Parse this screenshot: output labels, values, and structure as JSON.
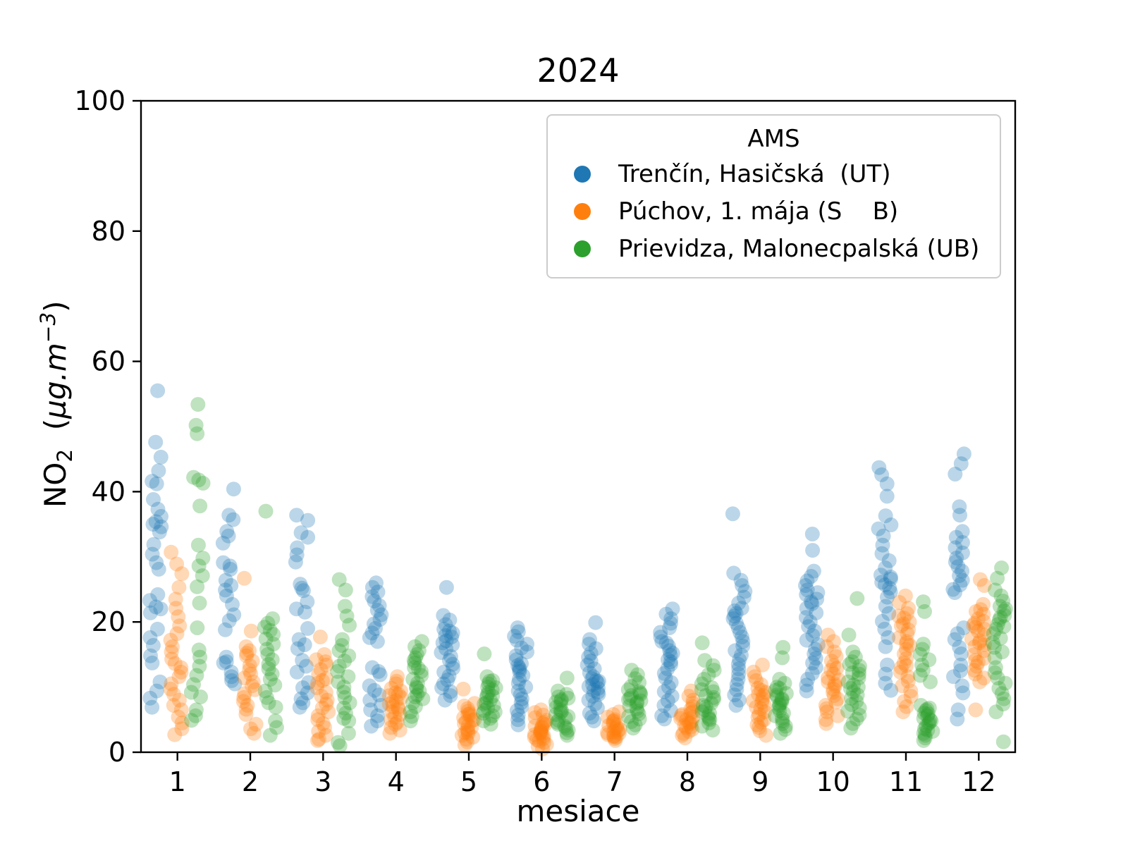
{
  "figure": {
    "title": "2024"
  },
  "chart_data": {
    "type": "scatter",
    "title": "2024",
    "xlabel": "mesiace",
    "ylabel": {
      "text": "NO2 (µg.m−3)",
      "base": "NO",
      "sub": "2",
      "open": "  (",
      "unit": "µg.m",
      "exp": "−3",
      "close": ")"
    },
    "xlim": [
      0.5,
      12.5
    ],
    "ylim": [
      0,
      100
    ],
    "xticks": [
      1,
      2,
      3,
      4,
      5,
      6,
      7,
      8,
      9,
      10,
      11,
      12
    ],
    "yticks": [
      0,
      20,
      40,
      60,
      80,
      100
    ],
    "grid": false,
    "categories": [
      1,
      2,
      3,
      4,
      5,
      6,
      7,
      8,
      9,
      10,
      11,
      12
    ],
    "marker": {
      "alpha": 0.3,
      "radius_px": 10.5,
      "jitter_halfwidth_months": 0.09
    },
    "legend": {
      "title": "AMS",
      "position": "upper right inside plot"
    },
    "series": [
      {
        "name": "Trenčín, Hasičská  (UT)",
        "color": "#1f77b4",
        "offset_months": -0.29,
        "monthly_values": [
          [
            55.5,
            47.6,
            45.3,
            43.2,
            41.6,
            41.2,
            38.8,
            37.3,
            36.2,
            35.4,
            35.0,
            34.6,
            33.8,
            31.9,
            30.4,
            29.1,
            28.1,
            24.2,
            23.3,
            22.3,
            22.0,
            21.4,
            18.9,
            17.6,
            16.4,
            14.8,
            13.7,
            10.8,
            9.4,
            8.3,
            6.9
          ],
          [
            40.4,
            36.4,
            35.7,
            33.9,
            33.2,
            32.1,
            29.1,
            28.6,
            28.1,
            26.4,
            25.6,
            24.9,
            24.0,
            22.7,
            21.1,
            20.2,
            18.8,
            14.6,
            13.9,
            13.7,
            12.3,
            11.6,
            11.0,
            10.5
          ],
          [
            36.4,
            35.6,
            33.7,
            33.0,
            31.4,
            30.3,
            29.2,
            25.8,
            25.2,
            24.8,
            23.1,
            22.0,
            21.5,
            19.0,
            17.3,
            16.5,
            15.9,
            14.1,
            13.2,
            12.3,
            10.7,
            9.9,
            9.1,
            8.2,
            7.6,
            6.9
          ],
          [
            26.0,
            25.3,
            24.6,
            23.9,
            23.2,
            22.5,
            21.8,
            21.1,
            20.4,
            19.7,
            19.0,
            18.3,
            17.6,
            17.0,
            13.0,
            12.4,
            11.9,
            10.2,
            9.5,
            8.8,
            8.0,
            7.2,
            6.5,
            5.6,
            4.8,
            4.0
          ],
          [
            25.3,
            21.0,
            20.3,
            19.6,
            18.9,
            18.6,
            18.3,
            17.9,
            17.7,
            17.1,
            16.8,
            16.5,
            15.9,
            15.3,
            14.7,
            14.1,
            13.5,
            12.9,
            12.3,
            11.7,
            11.1,
            10.5,
            9.9,
            9.3,
            8.7,
            8.0
          ],
          [
            19.1,
            18.5,
            17.8,
            17.2,
            16.6,
            16.0,
            15.4,
            14.8,
            14.2,
            13.6,
            13.3,
            13.0,
            12.7,
            12.4,
            11.8,
            11.2,
            10.6,
            10.0,
            9.4,
            8.8,
            8.2,
            7.6,
            7.0,
            6.4,
            5.7,
            5.0,
            4.2
          ],
          [
            19.9,
            17.3,
            16.6,
            15.9,
            15.2,
            14.6,
            14.0,
            13.4,
            12.8,
            12.2,
            11.6,
            11.3,
            11.0,
            10.9,
            10.7,
            10.4,
            10.1,
            9.8,
            9.5,
            9.2,
            8.9,
            8.6,
            8.0,
            7.4,
            6.8,
            6.0,
            5.4,
            4.8
          ],
          [
            22.0,
            21.2,
            20.5,
            19.8,
            19.1,
            18.4,
            17.7,
            17.0,
            16.8,
            16.3,
            15.6,
            15.2,
            14.9,
            14.2,
            13.9,
            13.5,
            12.8,
            12.1,
            11.4,
            10.7,
            10.0,
            9.3,
            8.6,
            7.9,
            7.2,
            6.4,
            5.6,
            5.1
          ],
          [
            36.6,
            27.5,
            26.4,
            25.6,
            24.7,
            23.8,
            22.9,
            22.1,
            21.7,
            21.3,
            20.9,
            20.5,
            19.8,
            19.1,
            18.4,
            17.7,
            17.0,
            16.3,
            15.6,
            14.9,
            14.2,
            13.5,
            12.8,
            12.0,
            11.2,
            10.4,
            9.6,
            8.8,
            8.0,
            7.2
          ],
          [
            33.5,
            31.0,
            27.8,
            27.0,
            26.3,
            25.6,
            24.9,
            24.5,
            24.2,
            23.5,
            23.1,
            22.8,
            22.1,
            21.4,
            20.7,
            20.0,
            19.3,
            18.6,
            17.9,
            17.2,
            16.5,
            15.8,
            15.1,
            14.4,
            13.7,
            13.0,
            12.1,
            11.2,
            10.3,
            9.4
          ],
          [
            43.7,
            42.6,
            41.2,
            39.3,
            36.3,
            34.9,
            34.3,
            33.2,
            31.8,
            30.5,
            29.4,
            28.3,
            27.2,
            26.9,
            26.6,
            26.1,
            25.7,
            25.2,
            24.6,
            23.8,
            22.4,
            21.3,
            20.1,
            18.9,
            17.6,
            16.2,
            13.4,
            12.0,
            10.6,
            9.5
          ],
          [
            45.8,
            44.3,
            42.7,
            37.7,
            36.4,
            33.9,
            33.0,
            32.2,
            31.4,
            30.6,
            29.8,
            29.2,
            28.5,
            27.8,
            27.1,
            26.4,
            25.7,
            25.0,
            24.5,
            19.1,
            18.2,
            17.3,
            16.1,
            15.1,
            13.4,
            12.5,
            11.6,
            10.2,
            9.1,
            6.5,
            5.1
          ]
        ]
      },
      {
        "name": "Púchov, 1. mája (S    B)",
        "color": "#ff7f0e",
        "offset_months": -0.01,
        "monthly_values": [
          [
            30.7,
            28.9,
            27.4,
            25.3,
            23.5,
            22.1,
            20.8,
            19.4,
            18.2,
            17.2,
            16.2,
            15.4,
            14.3,
            13.6,
            13.0,
            12.3,
            11.6,
            10.5,
            9.7,
            8.9,
            8.0,
            7.2,
            6.5,
            5.4,
            4.5,
            3.6,
            2.7
          ],
          [
            26.7,
            18.6,
            16.2,
            15.6,
            15.2,
            14.8,
            14.0,
            13.3,
            12.6,
            12.0,
            11.4,
            10.8,
            10.2,
            9.6,
            9.0,
            8.4,
            7.8,
            7.2,
            6.6,
            5.8,
            4.3,
            3.6,
            2.9
          ],
          [
            17.7,
            15.0,
            14.2,
            13.9,
            13.4,
            12.7,
            12.0,
            11.3,
            11.0,
            10.6,
            9.9,
            9.2,
            8.6,
            8.0,
            7.4,
            6.8,
            6.2,
            5.6,
            5.0,
            4.4,
            3.8,
            3.2,
            2.6,
            2.0,
            1.8
          ],
          [
            11.6,
            10.9,
            10.5,
            9.8,
            9.4,
            9.1,
            8.9,
            8.7,
            8.4,
            7.9,
            7.7,
            7.4,
            7.0,
            6.9,
            6.6,
            6.2,
            5.8,
            5.4,
            5.0,
            4.6,
            4.3,
            3.8,
            3.4,
            2.9
          ],
          [
            9.7,
            7.5,
            7.1,
            6.7,
            6.3,
            5.9,
            5.8,
            5.6,
            5.3,
            5.0,
            4.9,
            4.7,
            4.4,
            4.1,
            3.8,
            3.5,
            3.2,
            3.0,
            2.9,
            2.6,
            2.3,
            2.0,
            1.6,
            1.1
          ],
          [
            6.5,
            6.1,
            5.7,
            5.3,
            4.9,
            4.6,
            4.4,
            4.3,
            4.0,
            3.9,
            3.7,
            3.4,
            3.2,
            3.1,
            2.9,
            2.8,
            2.7,
            2.5,
            2.3,
            2.1,
            1.9,
            1.7,
            1.5,
            1.2,
            0.9,
            0.5
          ],
          [
            6.2,
            5.8,
            5.4,
            5.0,
            4.8,
            4.7,
            4.4,
            4.2,
            4.1,
            3.8,
            3.6,
            3.5,
            3.3,
            3.1,
            3.0,
            2.9,
            2.7,
            2.5,
            2.4,
            2.3,
            2.1,
            1.8
          ],
          [
            9.4,
            8.6,
            8.0,
            7.5,
            7.0,
            6.6,
            6.2,
            6.0,
            5.8,
            5.6,
            5.4,
            5.2,
            5.0,
            4.7,
            4.5,
            4.4,
            4.1,
            3.9,
            3.8,
            3.5,
            3.2,
            2.9,
            2.6,
            2.2
          ],
          [
            13.4,
            12.3,
            11.6,
            11.0,
            10.4,
            9.8,
            9.5,
            9.2,
            8.9,
            8.7,
            8.2,
            7.9,
            7.7,
            7.2,
            6.9,
            6.7,
            6.2,
            5.8,
            5.4,
            5.0,
            4.6,
            4.2,
            3.8,
            3.3,
            2.6
          ],
          [
            18.0,
            17.0,
            16.2,
            15.4,
            14.7,
            14.0,
            13.3,
            12.9,
            12.6,
            12.0,
            11.4,
            11.1,
            10.8,
            10.5,
            10.2,
            9.7,
            9.2,
            8.7,
            8.2,
            7.7,
            7.2,
            6.7,
            6.2,
            5.6,
            5.0,
            4.4
          ],
          [
            24.0,
            23.0,
            22.1,
            21.3,
            20.9,
            20.6,
            20.0,
            19.7,
            19.4,
            18.8,
            18.2,
            17.6,
            17.0,
            16.7,
            16.4,
            15.8,
            15.1,
            14.4,
            13.7,
            13.3,
            13.0,
            12.3,
            11.6,
            10.9,
            10.2,
            9.4,
            8.6,
            7.8,
            7.0,
            6.2
          ],
          [
            26.5,
            25.6,
            22.7,
            21.9,
            21.6,
            21.2,
            20.5,
            20.1,
            19.8,
            19.5,
            19.2,
            18.9,
            18.6,
            18.0,
            17.4,
            17.1,
            16.8,
            16.5,
            16.2,
            15.6,
            15.0,
            14.4,
            14.1,
            13.8,
            13.2,
            12.6,
            12.0,
            11.4,
            10.8,
            6.5
          ]
        ]
      },
      {
        "name": "Prievidza, Malonecpalská (UB)",
        "color": "#2ca02c",
        "offset_months": 0.28,
        "monthly_values": [
          [
            53.4,
            50.2,
            48.9,
            42.2,
            41.8,
            41.3,
            37.8,
            31.8,
            29.8,
            28.6,
            27.1,
            25.4,
            22.9,
            19.1,
            15.7,
            14.6,
            13.2,
            11.8,
            10.4,
            9.2,
            8.5,
            6.5,
            5.6,
            4.9
          ],
          [
            37.0,
            20.5,
            19.8,
            19.2,
            18.7,
            18.1,
            17.4,
            16.6,
            15.8,
            15.0,
            14.2,
            13.5,
            12.8,
            12.0,
            11.2,
            10.3,
            9.4,
            8.4,
            7.6,
            6.9,
            4.8,
            3.8,
            2.6
          ],
          [
            26.5,
            24.9,
            22.4,
            20.9,
            19.5,
            17.3,
            16.4,
            15.6,
            14.8,
            14.0,
            13.2,
            12.4,
            11.6,
            10.8,
            10.0,
            9.2,
            8.4,
            7.6,
            6.8,
            6.0,
            5.2,
            4.8,
            2.9,
            1.5,
            1.0
          ],
          [
            17.0,
            16.2,
            15.6,
            15.0,
            14.5,
            14.1,
            13.7,
            13.0,
            12.9,
            12.4,
            11.8,
            11.2,
            10.6,
            10.0,
            9.8,
            9.4,
            8.8,
            8.5,
            8.2,
            7.6,
            7.0,
            6.2,
            5.5,
            4.8
          ],
          [
            15.1,
            11.6,
            11.0,
            10.9,
            10.5,
            10.0,
            9.9,
            9.6,
            9.2,
            8.8,
            8.6,
            8.4,
            8.0,
            7.6,
            7.4,
            7.2,
            6.8,
            6.4,
            6.2,
            6.0,
            5.6,
            5.2,
            4.8,
            4.3
          ],
          [
            11.4,
            9.4,
            8.9,
            8.5,
            8.3,
            8.1,
            7.9,
            7.7,
            7.3,
            6.9,
            6.5,
            6.3,
            6.1,
            5.8,
            5.5,
            5.2,
            4.9,
            4.6,
            4.3,
            4.0,
            3.7,
            3.4,
            3.0,
            2.6
          ],
          [
            12.6,
            11.9,
            11.3,
            10.7,
            10.1,
            9.6,
            9.3,
            9.1,
            8.9,
            8.7,
            8.3,
            8.1,
            7.9,
            7.7,
            7.5,
            7.1,
            6.7,
            6.3,
            5.9,
            5.5,
            5.1,
            4.7,
            4.2,
            3.7
          ],
          [
            16.8,
            14.1,
            13.3,
            12.6,
            11.9,
            11.2,
            10.5,
            9.9,
            9.6,
            9.3,
            8.7,
            8.4,
            8.1,
            7.5,
            7.2,
            7.0,
            6.5,
            6.2,
            6.0,
            5.5,
            5.2,
            5.0,
            4.5,
            4.0,
            3.4
          ],
          [
            16.1,
            14.5,
            11.2,
            10.6,
            10.0,
            9.8,
            9.5,
            9.0,
            8.8,
            8.5,
            8.2,
            8.0,
            7.6,
            7.4,
            7.2,
            6.8,
            6.4,
            6.0,
            5.6,
            5.2,
            4.8,
            4.4,
            4.0,
            3.5,
            2.9
          ],
          [
            23.6,
            18.0,
            15.4,
            14.6,
            13.9,
            13.5,
            13.2,
            12.6,
            12.2,
            12.0,
            11.4,
            10.8,
            10.3,
            10.0,
            9.8,
            9.3,
            8.8,
            8.3,
            7.8,
            7.3,
            6.8,
            6.3,
            5.7,
            5.1,
            4.4,
            3.7
          ],
          [
            23.1,
            21.6,
            16.6,
            15.8,
            15.0,
            14.2,
            13.4,
            12.6,
            11.8,
            10.8,
            7.2,
            6.8,
            6.6,
            6.4,
            6.0,
            5.9,
            5.6,
            5.2,
            5.0,
            4.8,
            4.6,
            4.4,
            4.0,
            3.6,
            3.4,
            3.2,
            2.9,
            2.6,
            2.2,
            1.8
          ],
          [
            28.3,
            26.7,
            24.9,
            24.0,
            23.2,
            22.4,
            22.0,
            21.7,
            21.0,
            20.7,
            20.3,
            19.6,
            19.3,
            18.9,
            18.2,
            17.5,
            16.8,
            16.1,
            15.4,
            14.5,
            13.0,
            12.2,
            11.4,
            10.6,
            9.8,
            9.0,
            8.2,
            7.4,
            6.2,
            1.6
          ]
        ]
      }
    ]
  }
}
